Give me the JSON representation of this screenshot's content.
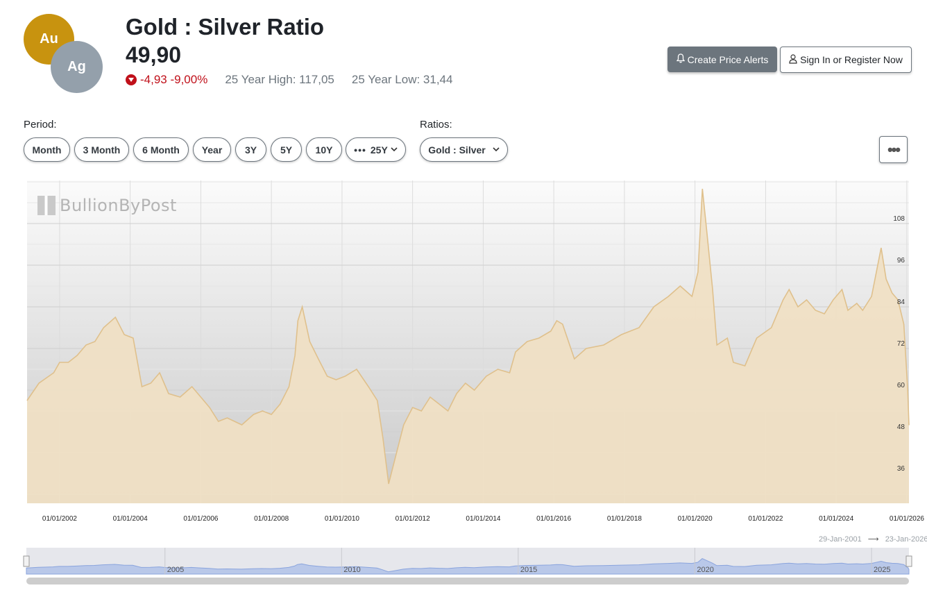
{
  "header": {
    "coin_top": "Au",
    "coin_bottom": "Ag",
    "title": "Gold : Silver Ratio",
    "price": "49,90",
    "change": "-4,93 -9,00%",
    "high_label": "25 Year High: 117,05",
    "low_label": "25 Year Low: 31,44"
  },
  "actions": {
    "alert_label": "Create Price Alerts",
    "sign_label": "Sign In or Register Now"
  },
  "controls": {
    "period_label": "Period:",
    "periods": [
      "Month",
      "3 Month",
      "6 Month",
      "Year",
      "3Y",
      "5Y",
      "10Y"
    ],
    "selected_period": "25Y",
    "ratios_label": "Ratios:",
    "selected_ratio": "Gold : Silver",
    "more_label": "•••"
  },
  "watermark": "BullionByPost",
  "range_text": {
    "from": "29-Jan-2001",
    "to": "23-Jan-2026"
  },
  "navigator_labels": [
    "2005",
    "2010",
    "2015",
    "2020",
    "2025"
  ],
  "colors": {
    "fill": "#f0e0c4",
    "line": "#dfc08c",
    "down": "#c0101a",
    "navigator": "#a9bde8"
  },
  "chart_data": {
    "type": "area",
    "title": "Gold : Silver Ratio",
    "xlabel": "",
    "ylabel": "",
    "y_ticks": [
      36,
      48,
      60,
      72,
      84,
      96,
      108
    ],
    "ylim": [
      27.4,
      120.4
    ],
    "x_ticks": [
      "01/01/2002",
      "01/01/2004",
      "01/01/2006",
      "01/01/2008",
      "01/01/2010",
      "01/01/2012",
      "01/01/2014",
      "01/01/2016",
      "01/01/2018",
      "01/01/2020",
      "01/01/2022",
      "01/01/2024",
      "01/01/2026"
    ],
    "xlim": [
      "2001-01-29",
      "2026-01-23"
    ],
    "grid": true,
    "series": [
      {
        "x": [
          "2001-01-29",
          "2001-06-01",
          "2001-11-01",
          "2002-01-01",
          "2002-04-01",
          "2002-07-01",
          "2002-10-01",
          "2003-01-01",
          "2003-04-01",
          "2003-08-01",
          "2003-11-01",
          "2004-02-01",
          "2004-05-01",
          "2004-08-01",
          "2004-11-01",
          "2005-02-01",
          "2005-06-01",
          "2005-10-01",
          "2006-01-01",
          "2006-04-01",
          "2006-07-01",
          "2006-10-01",
          "2007-03-01",
          "2007-07-01",
          "2007-10-01",
          "2008-01-01",
          "2008-04-01",
          "2008-07-01",
          "2008-09-01",
          "2008-10-01",
          "2008-11-15",
          "2009-02-01",
          "2009-05-01",
          "2009-08-01",
          "2009-11-01",
          "2010-02-01",
          "2010-06-01",
          "2010-10-01",
          "2011-01-01",
          "2011-03-01",
          "2011-04-28",
          "2011-07-01",
          "2011-10-01",
          "2012-01-01",
          "2012-04-01",
          "2012-07-01",
          "2012-10-01",
          "2013-01-01",
          "2013-04-01",
          "2013-07-01",
          "2013-10-01",
          "2014-02-01",
          "2014-06-01",
          "2014-10-01",
          "2014-12-01",
          "2015-04-01",
          "2015-08-01",
          "2015-12-01",
          "2016-02-01",
          "2016-04-01",
          "2016-08-01",
          "2016-12-01",
          "2017-06-01",
          "2017-12-01",
          "2018-06-01",
          "2018-11-01",
          "2019-04-01",
          "2019-08-01",
          "2019-12-01",
          "2020-02-01",
          "2020-03-18",
          "2020-05-01",
          "2020-07-01",
          "2020-08-15",
          "2020-12-01",
          "2021-02-01",
          "2021-06-01",
          "2021-10-01",
          "2022-03-01",
          "2022-07-01",
          "2022-09-01",
          "2022-12-01",
          "2023-03-01",
          "2023-06-01",
          "2023-09-01",
          "2023-12-01",
          "2024-03-01",
          "2024-05-01",
          "2024-08-01",
          "2024-10-01",
          "2025-01-01",
          "2025-04-10",
          "2025-06-01",
          "2025-08-01",
          "2025-10-01",
          "2025-12-01",
          "2026-01-10",
          "2026-01-23"
        ],
        "values": [
          57,
          62,
          65,
          68,
          68,
          70,
          73,
          74,
          78,
          81,
          76,
          75,
          61,
          62,
          65,
          59,
          58,
          61,
          58,
          55,
          51,
          52,
          50,
          53,
          54,
          53,
          56,
          61,
          70,
          80,
          84,
          74,
          69,
          64,
          63,
          64,
          66,
          61,
          57,
          46,
          33,
          40,
          50,
          55,
          54,
          58,
          56,
          54,
          59,
          62,
          60,
          64,
          66,
          65,
          71,
          74,
          75,
          77,
          80,
          79,
          69,
          72,
          73,
          76,
          78,
          84,
          87,
          90,
          87,
          94,
          118,
          106,
          89,
          73,
          75,
          68,
          67,
          75,
          78,
          86,
          89,
          84,
          86,
          83,
          82,
          86,
          89,
          83,
          85,
          83,
          87,
          101,
          92,
          88,
          86,
          79,
          60,
          49.9
        ]
      }
    ]
  }
}
